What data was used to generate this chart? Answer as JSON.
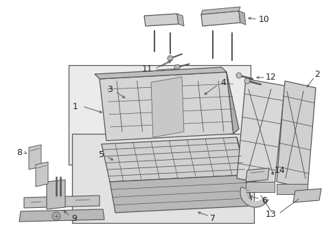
{
  "bg_color": "#ffffff",
  "line_color": "#555555",
  "shade1": "#d8d8d8",
  "shade2": "#c0c0c0",
  "shade3": "#a8a8a8",
  "box_fill": "#e8e8e8",
  "fig_width": 4.89,
  "fig_height": 3.6,
  "dpi": 100
}
